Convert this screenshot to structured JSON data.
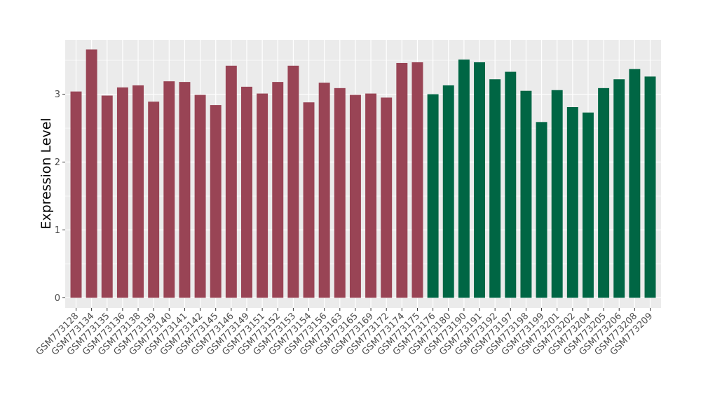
{
  "chart_data": {
    "type": "bar",
    "title": "",
    "xlabel": "",
    "ylabel": "Expression Level",
    "ylim": [
      -0.15,
      3.8
    ],
    "yticks": [
      0,
      1,
      2,
      3
    ],
    "grid": true,
    "legend": "none",
    "panel_background": "#ebebeb",
    "grid_color": "#ffffff",
    "categories": [
      "GSM773128",
      "GSM773134",
      "GSM773135",
      "GSM773136",
      "GSM773138",
      "GSM773139",
      "GSM773140",
      "GSM773141",
      "GSM773142",
      "GSM773145",
      "GSM773146",
      "GSM773149",
      "GSM773151",
      "GSM773152",
      "GSM773153",
      "GSM773154",
      "GSM773156",
      "GSM773163",
      "GSM773165",
      "GSM773169",
      "GSM773172",
      "GSM773174",
      "GSM773175",
      "GSM773176",
      "GSM773180",
      "GSM773190",
      "GSM773191",
      "GSM773192",
      "GSM773197",
      "GSM773198",
      "GSM773199",
      "GSM773201",
      "GSM773202",
      "GSM773204",
      "GSM773205",
      "GSM773206",
      "GSM773208",
      "GSM773209"
    ],
    "values": [
      3.04,
      3.66,
      2.98,
      3.1,
      3.13,
      2.89,
      3.19,
      3.18,
      2.99,
      2.84,
      3.42,
      3.11,
      3.01,
      3.18,
      3.42,
      2.88,
      3.17,
      3.09,
      2.99,
      3.01,
      2.95,
      3.46,
      3.47,
      3.0,
      3.13,
      3.51,
      3.47,
      3.22,
      3.33,
      3.05,
      2.59,
      3.06,
      2.81,
      2.73,
      3.09,
      3.22,
      3.37,
      3.26
    ],
    "groups": [
      {
        "color": "#994455",
        "count": 23
      },
      {
        "color": "#006644",
        "count": 15
      }
    ]
  }
}
